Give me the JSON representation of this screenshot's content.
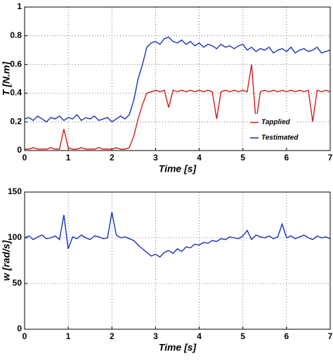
{
  "chart_data": [
    {
      "type": "line",
      "xlabel": "Time [s]",
      "ylabel": "T [N.m]",
      "x": [
        0,
        0.1,
        0.2,
        0.3,
        0.4,
        0.5,
        0.6,
        0.7,
        0.8,
        0.9,
        1,
        1.1,
        1.2,
        1.3,
        1.4,
        1.5,
        1.6,
        1.7,
        1.8,
        1.9,
        2,
        2.1,
        2.2,
        2.3,
        2.4,
        2.5,
        2.6,
        2.7,
        2.8,
        2.9,
        3,
        3.1,
        3.2,
        3.3,
        3.4,
        3.5,
        3.6,
        3.7,
        3.8,
        3.9,
        4,
        4.1,
        4.2,
        4.3,
        4.4,
        4.5,
        4.6,
        4.7,
        4.8,
        4.9,
        5,
        5.1,
        5.2,
        5.3,
        5.4,
        5.5,
        5.6,
        5.7,
        5.8,
        5.9,
        6,
        6.1,
        6.2,
        6.3,
        6.4,
        6.5,
        6.6,
        6.7,
        6.8,
        6.9,
        7
      ],
      "series": [
        {
          "name": "Tapplied",
          "color": "#cc1f1f",
          "values": [
            0.01,
            0.01,
            0.02,
            0.01,
            0.01,
            0.01,
            0.02,
            0.01,
            0.01,
            0.15,
            0.02,
            0.01,
            0.01,
            0.02,
            0.01,
            0.01,
            0.01,
            0.02,
            0.01,
            0.01,
            0.01,
            0.02,
            0.01,
            0.01,
            0.02,
            0.1,
            0.22,
            0.32,
            0.4,
            0.41,
            0.42,
            0.41,
            0.42,
            0.3,
            0.42,
            0.41,
            0.42,
            0.41,
            0.42,
            0.41,
            0.42,
            0.41,
            0.42,
            0.41,
            0.22,
            0.41,
            0.42,
            0.41,
            0.42,
            0.41,
            0.42,
            0.41,
            0.6,
            0.2,
            0.41,
            0.42,
            0.41,
            0.42,
            0.41,
            0.42,
            0.41,
            0.42,
            0.41,
            0.42,
            0.41,
            0.42,
            0.2,
            0.42,
            0.41,
            0.42,
            0.41
          ]
        },
        {
          "name": "Testimated",
          "color": "#1a2fbf",
          "values": [
            0.22,
            0.23,
            0.21,
            0.24,
            0.22,
            0.2,
            0.23,
            0.22,
            0.24,
            0.21,
            0.23,
            0.22,
            0.25,
            0.21,
            0.23,
            0.22,
            0.24,
            0.21,
            0.22,
            0.23,
            0.2,
            0.22,
            0.24,
            0.22,
            0.25,
            0.35,
            0.5,
            0.6,
            0.72,
            0.75,
            0.76,
            0.74,
            0.78,
            0.79,
            0.76,
            0.75,
            0.77,
            0.74,
            0.76,
            0.73,
            0.75,
            0.72,
            0.74,
            0.73,
            0.71,
            0.74,
            0.72,
            0.73,
            0.71,
            0.73,
            0.74,
            0.7,
            0.72,
            0.69,
            0.71,
            0.7,
            0.72,
            0.68,
            0.7,
            0.71,
            0.69,
            0.72,
            0.68,
            0.7,
            0.71,
            0.69,
            0.7,
            0.72,
            0.68,
            0.69,
            0.7
          ]
        }
      ],
      "xlim": [
        0,
        7
      ],
      "xticks": [
        0,
        1,
        2,
        3,
        4,
        5,
        6,
        7
      ],
      "ylim": [
        0,
        1
      ],
      "yticks": [
        0,
        0.2,
        0.4,
        0.6,
        0.8,
        1
      ],
      "grid": true,
      "legend": "lower right"
    },
    {
      "type": "line",
      "xlabel": "Time [s]",
      "ylabel": "w [rad/s]",
      "x": [
        0,
        0.1,
        0.2,
        0.3,
        0.4,
        0.5,
        0.6,
        0.7,
        0.8,
        0.9,
        1,
        1.1,
        1.2,
        1.3,
        1.4,
        1.5,
        1.6,
        1.7,
        1.8,
        1.9,
        2,
        2.1,
        2.2,
        2.3,
        2.4,
        2.5,
        2.6,
        2.7,
        2.8,
        2.9,
        3,
        3.1,
        3.2,
        3.3,
        3.4,
        3.5,
        3.6,
        3.7,
        3.8,
        3.9,
        4,
        4.1,
        4.2,
        4.3,
        4.4,
        4.5,
        4.6,
        4.7,
        4.8,
        4.9,
        5,
        5.1,
        5.2,
        5.3,
        5.4,
        5.5,
        5.6,
        5.7,
        5.8,
        5.9,
        6,
        6.1,
        6.2,
        6.3,
        6.4,
        6.5,
        6.6,
        6.7,
        6.8,
        6.9,
        7
      ],
      "series": [
        {
          "color": "#1a2fbf",
          "values": [
            100,
            102,
            98,
            101,
            103,
            99,
            100,
            102,
            98,
            125,
            88,
            101,
            99,
            103,
            100,
            98,
            102,
            101,
            99,
            100,
            128,
            103,
            100,
            101,
            99,
            97,
            92,
            88,
            84,
            80,
            82,
            79,
            84,
            86,
            83,
            88,
            85,
            90,
            89,
            93,
            92,
            95,
            94,
            97,
            96,
            99,
            98,
            101,
            100,
            99,
            102,
            108,
            98,
            103,
            101,
            100,
            102,
            99,
            101,
            115,
            100,
            102,
            99,
            101,
            103,
            100,
            98,
            102,
            100,
            101,
            99
          ]
        }
      ],
      "xlim": [
        0,
        7
      ],
      "xticks": [
        0,
        1,
        2,
        3,
        4,
        5,
        6,
        7
      ],
      "ylim": [
        0,
        150
      ],
      "yticks": [
        0,
        50,
        100,
        150
      ],
      "grid": true
    }
  ]
}
